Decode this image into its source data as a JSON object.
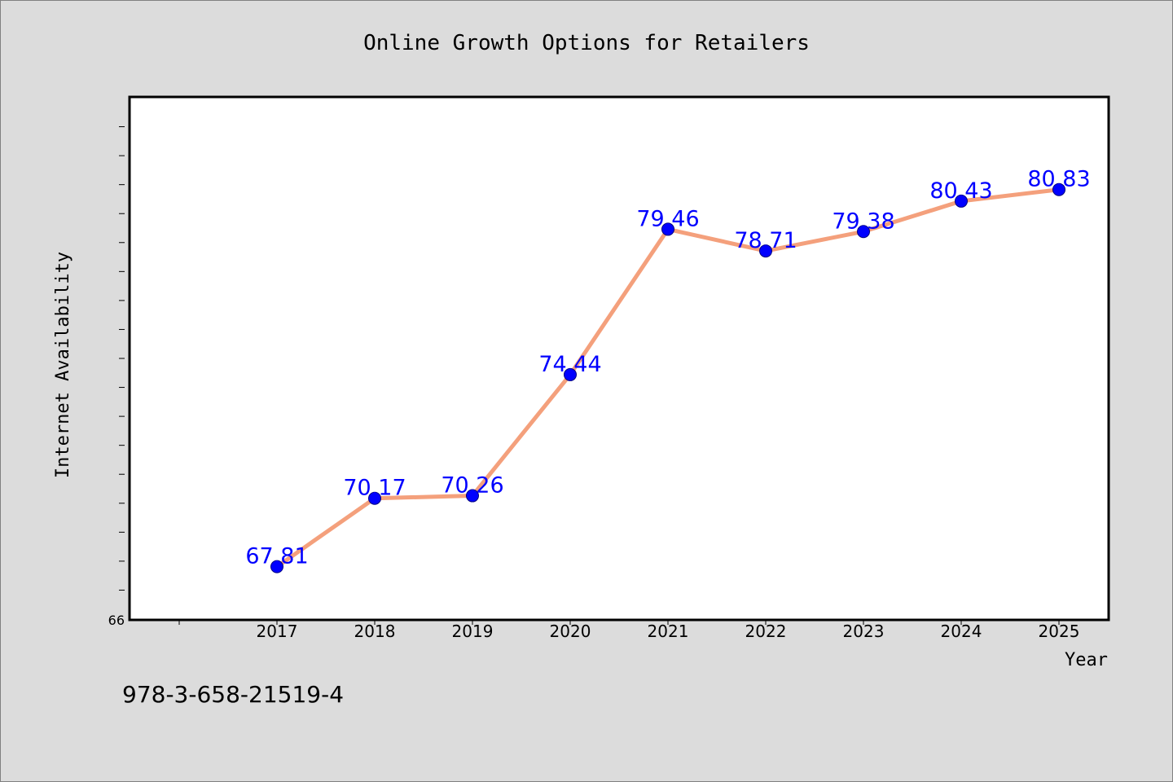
{
  "chart_data": {
    "type": "line",
    "title": "Online Growth Options for Retailers",
    "xlabel": "Year",
    "ylabel": "Internet Availability",
    "categories": [
      "2017",
      "2018",
      "2019",
      "2020",
      "2021",
      "2022",
      "2023",
      "2024",
      "2025"
    ],
    "series": [
      {
        "values": [
          67.81,
          70.17,
          70.26,
          74.44,
          79.46,
          78.71,
          79.38,
          80.43,
          80.83
        ]
      }
    ],
    "data_labels": [
      "67.81",
      "70.17",
      "70.26",
      "74.44",
      "79.46",
      "78.71",
      "79.38",
      "80.43",
      "80.83"
    ],
    "ylim": [
      66,
      84
    ],
    "y_tick_labels": [
      "66"
    ],
    "grid": false,
    "colors": {
      "line": "#f4a07c",
      "marker": "#0000ff",
      "marker_edge": "#000080",
      "data_label": "#0000ff",
      "background": "#dcdcdc",
      "plot_background": "#ffffff"
    }
  },
  "footer": {
    "isbn": "978-3-658-21519-4"
  }
}
